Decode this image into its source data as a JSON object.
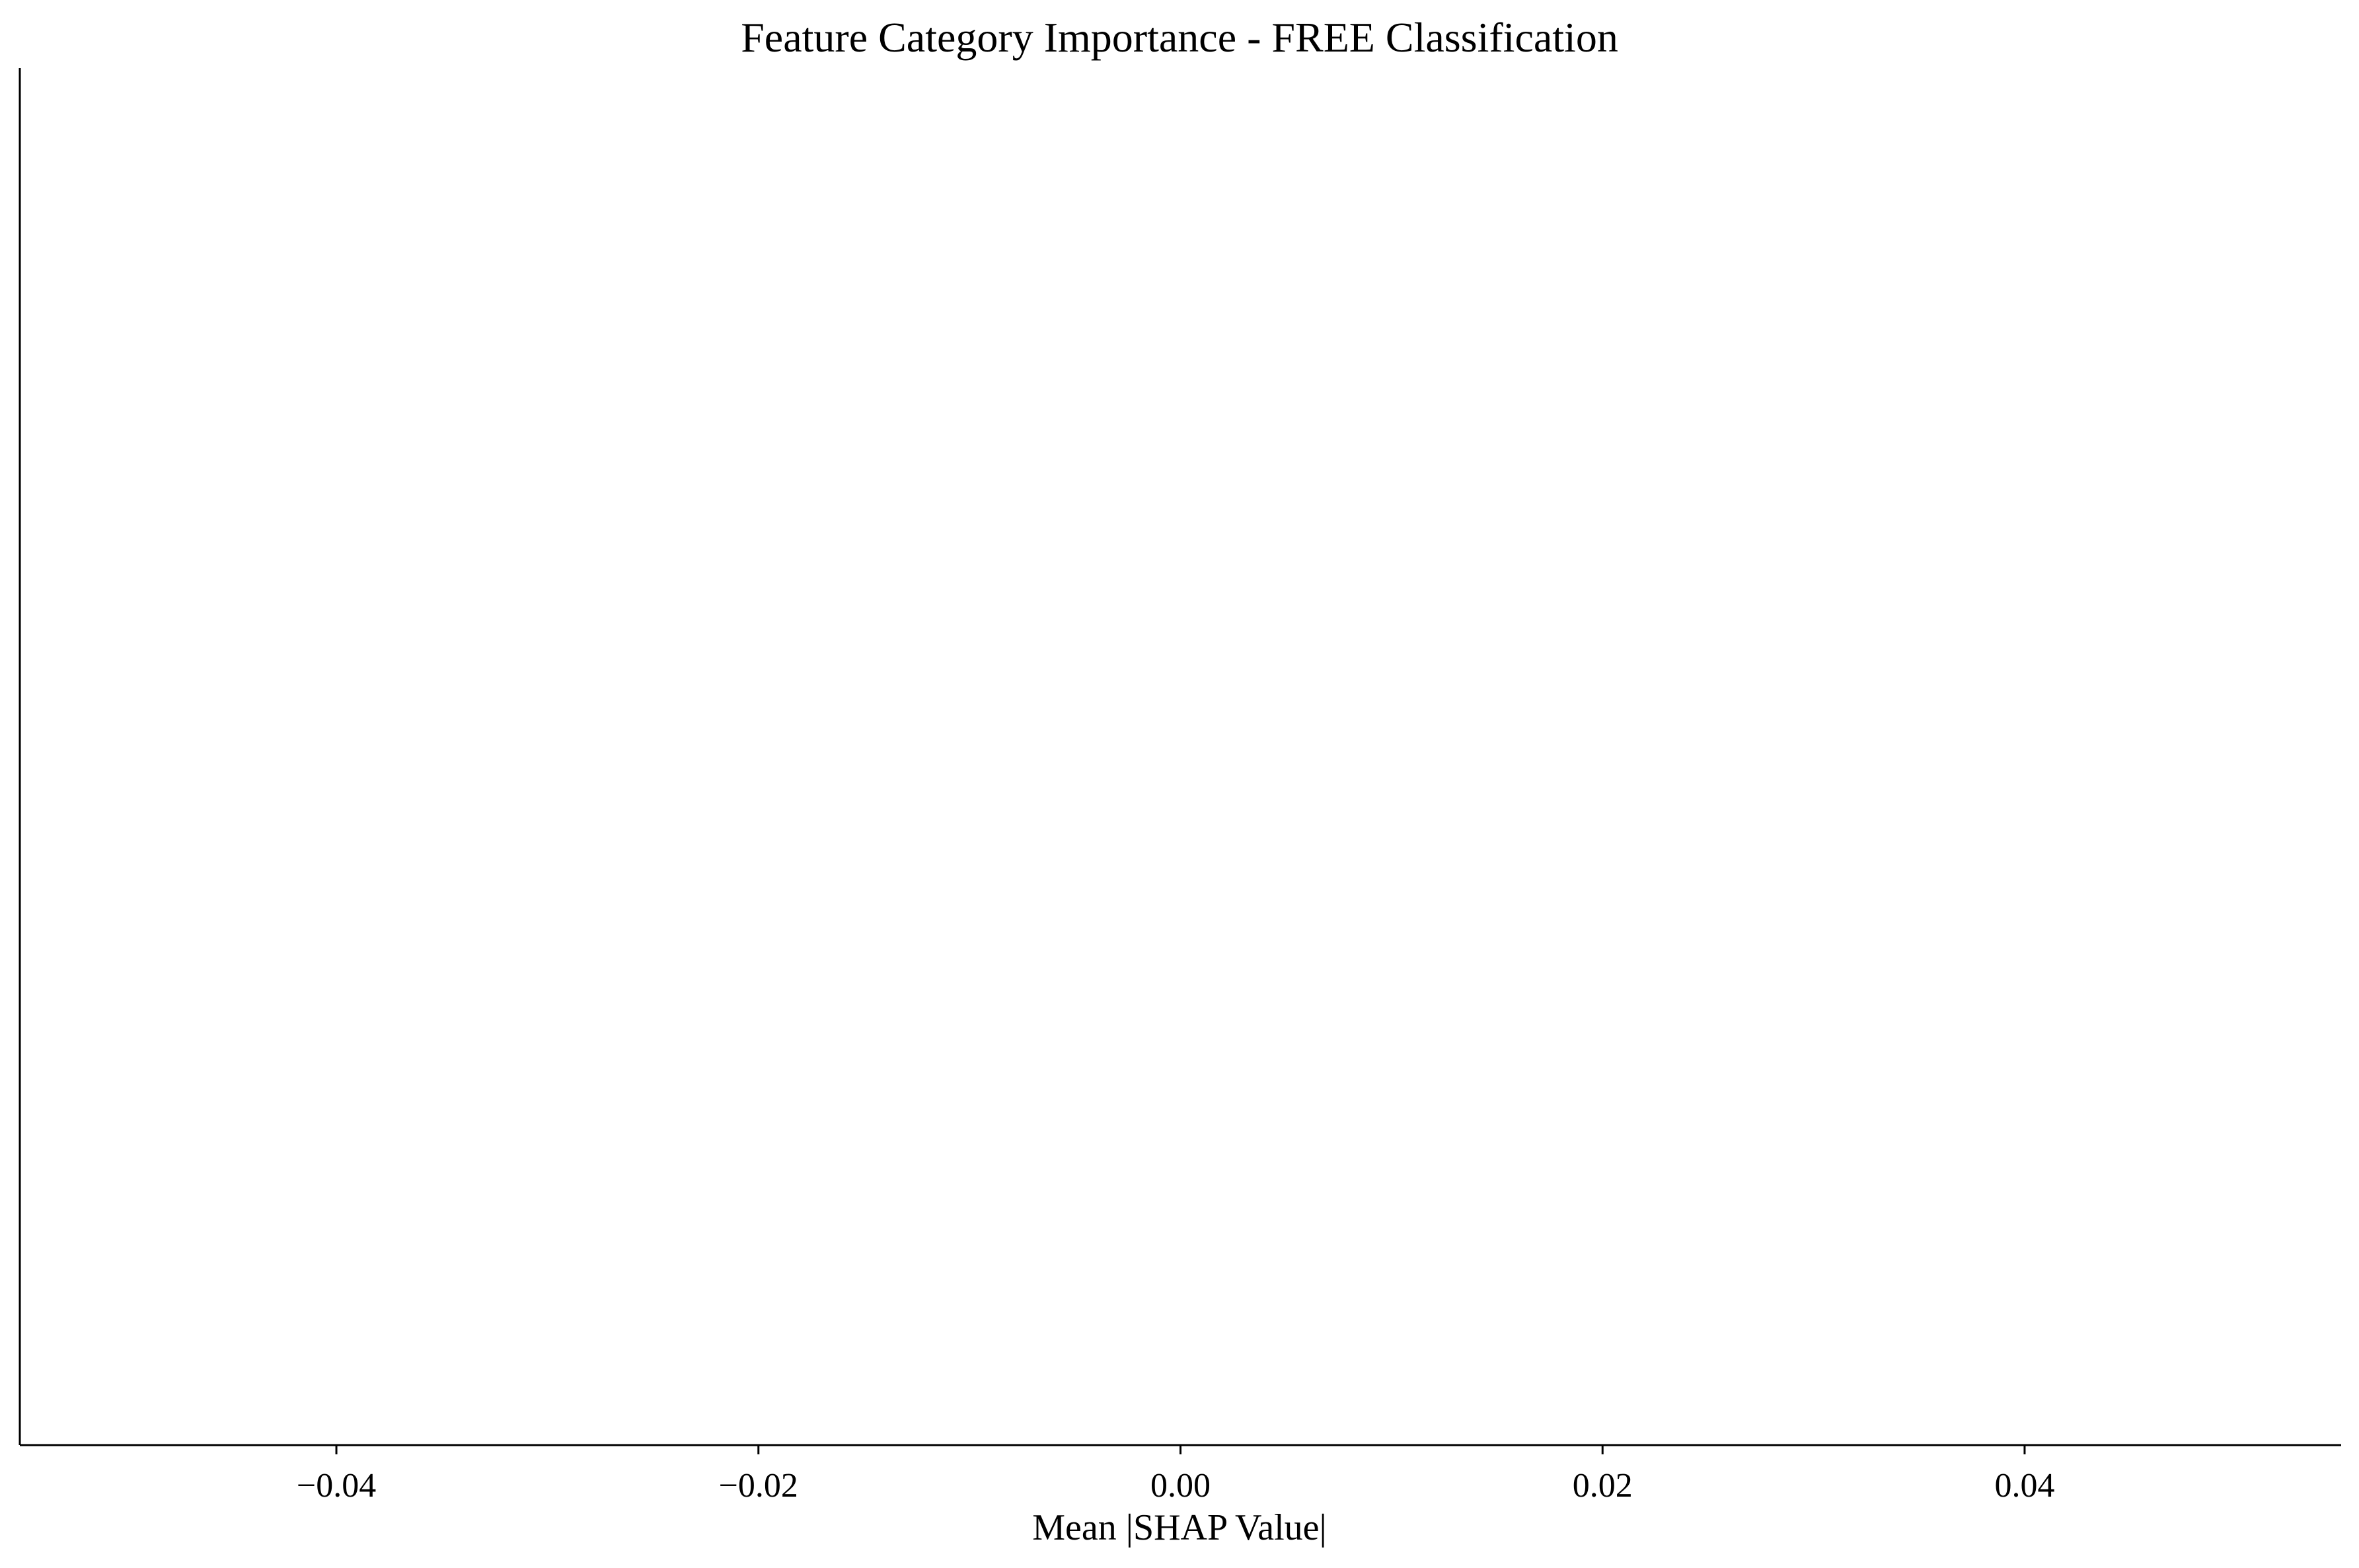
{
  "chart_data": {
    "type": "bar",
    "title": "Feature Category Importance - FREE Classification",
    "xlabel": "Mean |SHAP Value|",
    "ylabel": "",
    "categories": [],
    "values": [],
    "xlim": [
      -0.055,
      0.055
    ],
    "xticks": [
      -0.04,
      -0.02,
      0.0,
      0.02,
      0.04
    ],
    "xtick_labels": [
      "−0.04",
      "−0.02",
      "0.00",
      "0.02",
      "0.04"
    ],
    "grid": false,
    "colors": {
      "axis": "#000000",
      "background": "#ffffff"
    }
  }
}
